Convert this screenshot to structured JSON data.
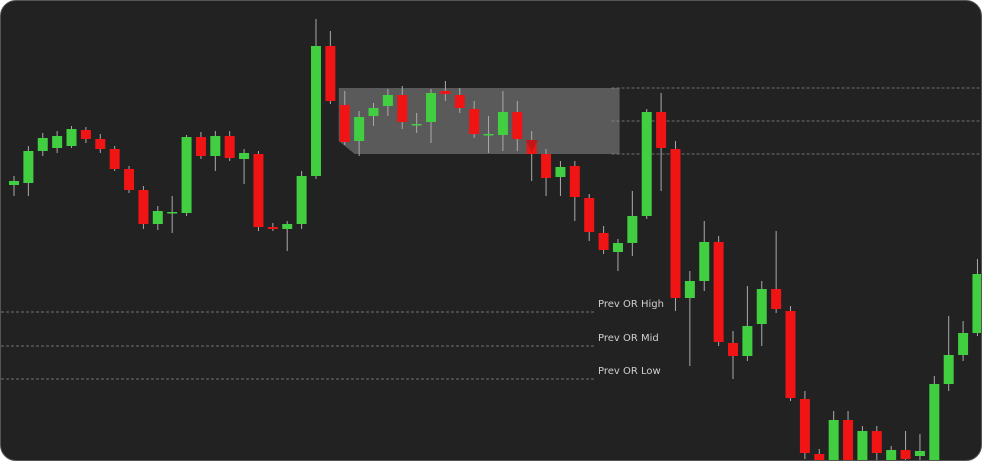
{
  "chart_data": {
    "type": "candlestick",
    "ylim": [
      0,
      461
    ],
    "up_color": "#41cf41",
    "down_color": "#f01414",
    "candles": [
      [
        277,
        286,
        266,
        281
      ],
      [
        279,
        316,
        266,
        311
      ],
      [
        311,
        329,
        306,
        324
      ],
      [
        314,
        331,
        309,
        326
      ],
      [
        316,
        336,
        314,
        333
      ],
      [
        332,
        335,
        319,
        323
      ],
      [
        323,
        328,
        309,
        313
      ],
      [
        313,
        316,
        291,
        293
      ],
      [
        293,
        296,
        269,
        272
      ],
      [
        272,
        276,
        233,
        238
      ],
      [
        238,
        256,
        232,
        251
      ],
      [
        250,
        266,
        229,
        250
      ],
      [
        249,
        327,
        246,
        325
      ],
      [
        325,
        330,
        303,
        306
      ],
      [
        306,
        331,
        291,
        326
      ],
      [
        326,
        331,
        301,
        304
      ],
      [
        303,
        313,
        278,
        309
      ],
      [
        308,
        311,
        231,
        235
      ],
      [
        235,
        239,
        231,
        233
      ],
      [
        233,
        241,
        211,
        238
      ],
      [
        238,
        291,
        233,
        286
      ],
      [
        286,
        443,
        283,
        416
      ],
      [
        416,
        431,
        358,
        361
      ],
      [
        357,
        371,
        317,
        320
      ],
      [
        321,
        351,
        306,
        345
      ],
      [
        346,
        359,
        336,
        354
      ],
      [
        356,
        373,
        346,
        367
      ],
      [
        367,
        376,
        333,
        340
      ],
      [
        338,
        349,
        329,
        338
      ],
      [
        340,
        373,
        319,
        369
      ],
      [
        371,
        381,
        361,
        368
      ],
      [
        367,
        374,
        349,
        354
      ],
      [
        353,
        361,
        324,
        328
      ],
      [
        328,
        346,
        309,
        328
      ],
      [
        327,
        371,
        311,
        350
      ],
      [
        350,
        361,
        311,
        323
      ],
      [
        321,
        331,
        281,
        308
      ],
      [
        308,
        313,
        266,
        284
      ],
      [
        285,
        301,
        266,
        295
      ],
      [
        296,
        301,
        241,
        265
      ],
      [
        264,
        268,
        221,
        230
      ],
      [
        229,
        236,
        208,
        212
      ],
      [
        210,
        223,
        191,
        219
      ],
      [
        219,
        271,
        206,
        246
      ],
      [
        246,
        353,
        243,
        350
      ],
      [
        350,
        369,
        271,
        314
      ],
      [
        313,
        321,
        151,
        164
      ],
      [
        164,
        191,
        96,
        181
      ],
      [
        181,
        241,
        171,
        220
      ],
      [
        220,
        226,
        116,
        120
      ],
      [
        119,
        131,
        83,
        106
      ],
      [
        106,
        176,
        101,
        136
      ],
      [
        138,
        181,
        116,
        173
      ],
      [
        173,
        231,
        149,
        153
      ],
      [
        151,
        156,
        61,
        64
      ],
      [
        63,
        71,
        3,
        9
      ],
      [
        8,
        13,
        0,
        0
      ],
      [
        0,
        51,
        0,
        42
      ],
      [
        42,
        51,
        0,
        0
      ],
      [
        0,
        36,
        0,
        31
      ],
      [
        31,
        36,
        0,
        9
      ],
      [
        0,
        16,
        0,
        12
      ],
      [
        12,
        31,
        0,
        3
      ],
      [
        6,
        28,
        0,
        11
      ],
      [
        0,
        86,
        0,
        78
      ],
      [
        78,
        146,
        71,
        107
      ],
      [
        107,
        141,
        101,
        129
      ],
      [
        129,
        203,
        126,
        188
      ]
    ],
    "opening_range": {
      "high": 374,
      "mid": 341,
      "low": 308,
      "start": 23,
      "end": 41
    },
    "signal": {
      "index": 36,
      "value": 316,
      "color": "#c01818"
    },
    "levels": [
      {
        "label": "Prev OR High",
        "value": 150
      },
      {
        "label": "Prev OR Mid",
        "value": 116
      },
      {
        "label": "Prev OR Low",
        "value": 83
      }
    ]
  }
}
